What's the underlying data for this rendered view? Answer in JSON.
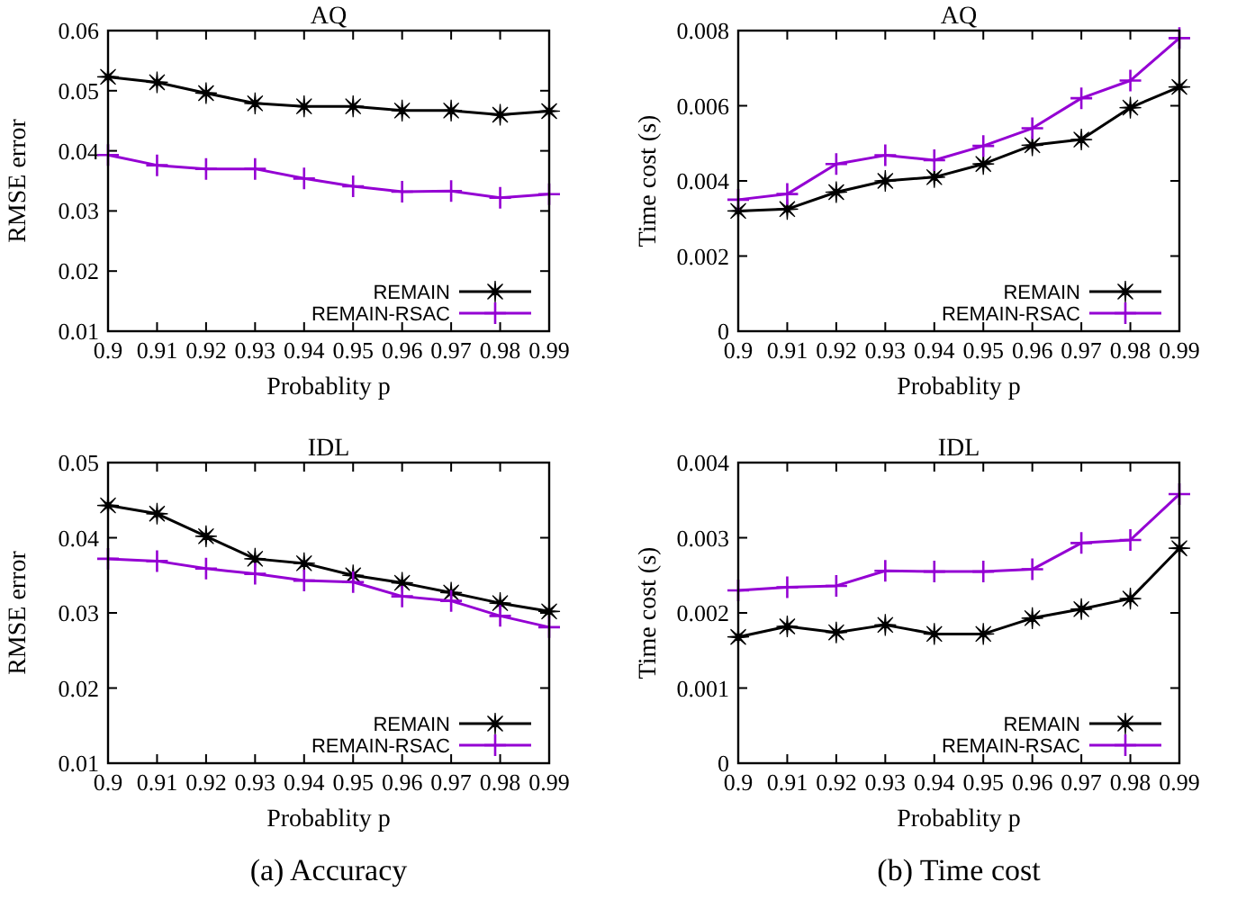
{
  "chart_data": [
    {
      "type": "line",
      "title": "AQ",
      "xlabel": "Probablity p",
      "ylabel": "RMSE error",
      "x": [
        0.9,
        0.91,
        0.92,
        0.93,
        0.94,
        0.95,
        0.96,
        0.97,
        0.98,
        0.99
      ],
      "xlim": [
        0.9,
        0.99
      ],
      "xticks": [
        0.9,
        0.91,
        0.92,
        0.93,
        0.94,
        0.95,
        0.96,
        0.97,
        0.98,
        0.99
      ],
      "ylim": [
        0.01,
        0.06
      ],
      "yticks": [
        0.01,
        0.02,
        0.03,
        0.04,
        0.05,
        0.06
      ],
      "grid": false,
      "legend": "bottom right",
      "series": [
        {
          "name": "REMAIN",
          "color": "#000000",
          "marker": "star",
          "values": [
            0.0523,
            0.0514,
            0.0496,
            0.0479,
            0.0474,
            0.0474,
            0.0467,
            0.0467,
            0.046,
            0.0466
          ]
        },
        {
          "name": "REMAIN-RSAC",
          "color": "#9400d3",
          "marker": "cross",
          "values": [
            0.0393,
            0.0376,
            0.037,
            0.037,
            0.0354,
            0.0341,
            0.0332,
            0.0333,
            0.0322,
            0.0328
          ]
        }
      ]
    },
    {
      "type": "line",
      "title": "AQ",
      "xlabel": "Probablity p",
      "ylabel": "Time cost (s)",
      "x": [
        0.9,
        0.91,
        0.92,
        0.93,
        0.94,
        0.95,
        0.96,
        0.97,
        0.98,
        0.99
      ],
      "xlim": [
        0.9,
        0.99
      ],
      "xticks": [
        0.9,
        0.91,
        0.92,
        0.93,
        0.94,
        0.95,
        0.96,
        0.97,
        0.98,
        0.99
      ],
      "ylim": [
        0,
        0.008
      ],
      "yticks": [
        0,
        0.002,
        0.004,
        0.006,
        0.008
      ],
      "grid": false,
      "legend": "bottom right",
      "series": [
        {
          "name": "REMAIN",
          "color": "#000000",
          "marker": "star",
          "values": [
            0.0032,
            0.00325,
            0.0037,
            0.004,
            0.0041,
            0.00445,
            0.00495,
            0.0051,
            0.00595,
            0.0065
          ]
        },
        {
          "name": "REMAIN-RSAC",
          "color": "#9400d3",
          "marker": "cross",
          "values": [
            0.0035,
            0.00365,
            0.00445,
            0.00468,
            0.00455,
            0.00493,
            0.0054,
            0.0062,
            0.00667,
            0.0078
          ]
        }
      ]
    },
    {
      "type": "line",
      "title": "IDL",
      "xlabel": "Probablity p",
      "ylabel": "RMSE error",
      "x": [
        0.9,
        0.91,
        0.92,
        0.93,
        0.94,
        0.95,
        0.96,
        0.97,
        0.98,
        0.99
      ],
      "xlim": [
        0.9,
        0.99
      ],
      "xticks": [
        0.9,
        0.91,
        0.92,
        0.93,
        0.94,
        0.95,
        0.96,
        0.97,
        0.98,
        0.99
      ],
      "ylim": [
        0.01,
        0.05
      ],
      "yticks": [
        0.01,
        0.02,
        0.03,
        0.04,
        0.05
      ],
      "grid": false,
      "legend": "bottom right",
      "annotations": [
        "(a) Accuracy"
      ],
      "series": [
        {
          "name": "REMAIN",
          "color": "#000000",
          "marker": "star",
          "values": [
            0.0443,
            0.0432,
            0.0402,
            0.0372,
            0.0366,
            0.035,
            0.034,
            0.0327,
            0.0313,
            0.0302
          ]
        },
        {
          "name": "REMAIN-RSAC",
          "color": "#9400d3",
          "marker": "cross",
          "values": [
            0.0372,
            0.0369,
            0.0359,
            0.0352,
            0.0343,
            0.0341,
            0.0322,
            0.0316,
            0.0296,
            0.0281
          ]
        }
      ]
    },
    {
      "type": "line",
      "title": "IDL",
      "xlabel": "Probablity p",
      "ylabel": "Time cost (s)",
      "x": [
        0.9,
        0.91,
        0.92,
        0.93,
        0.94,
        0.95,
        0.96,
        0.97,
        0.98,
        0.99
      ],
      "xlim": [
        0.9,
        0.99
      ],
      "xticks": [
        0.9,
        0.91,
        0.92,
        0.93,
        0.94,
        0.95,
        0.96,
        0.97,
        0.98,
        0.99
      ],
      "ylim": [
        0,
        0.004
      ],
      "yticks": [
        0,
        0.001,
        0.002,
        0.003,
        0.004
      ],
      "grid": false,
      "legend": "bottom right",
      "annotations": [
        "(b) Time cost"
      ],
      "series": [
        {
          "name": "REMAIN",
          "color": "#000000",
          "marker": "star",
          "values": [
            0.00168,
            0.00182,
            0.00174,
            0.00184,
            0.00172,
            0.00172,
            0.00193,
            0.00205,
            0.00219,
            0.00286
          ]
        },
        {
          "name": "REMAIN-RSAC",
          "color": "#9400d3",
          "marker": "cross",
          "values": [
            0.0023,
            0.00234,
            0.00236,
            0.00256,
            0.00255,
            0.00255,
            0.00258,
            0.00293,
            0.00297,
            0.00358
          ]
        }
      ]
    }
  ]
}
